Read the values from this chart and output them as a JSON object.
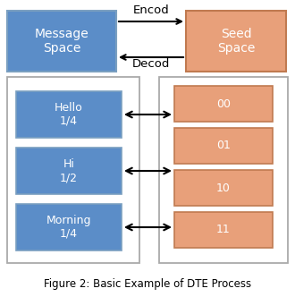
{
  "figsize": [
    3.3,
    3.32
  ],
  "dpi": 100,
  "bg_color": "#ffffff",
  "blue_color": "#5b8dc8",
  "orange_color": "#e8a07a",
  "box_edge_color": "#7a9fc0",
  "orange_edge_color": "#c07a50",
  "outer_edge_color": "#aaaaaa",
  "arrow_color": "#000000",
  "title_text": "Figure 2: Basic Example of DTE Process",
  "title_fontsize": 8.5,
  "encod_text": "Encod",
  "decod_text": "Decod",
  "msg_space_text": "Message\nSpace",
  "seed_space_text": "Seed\nSpace",
  "left_labels": [
    "Hello\n1/4",
    "Hi\n1/2",
    "Morning\n1/4"
  ],
  "right_labels": [
    "00",
    "01",
    "10",
    "11"
  ]
}
